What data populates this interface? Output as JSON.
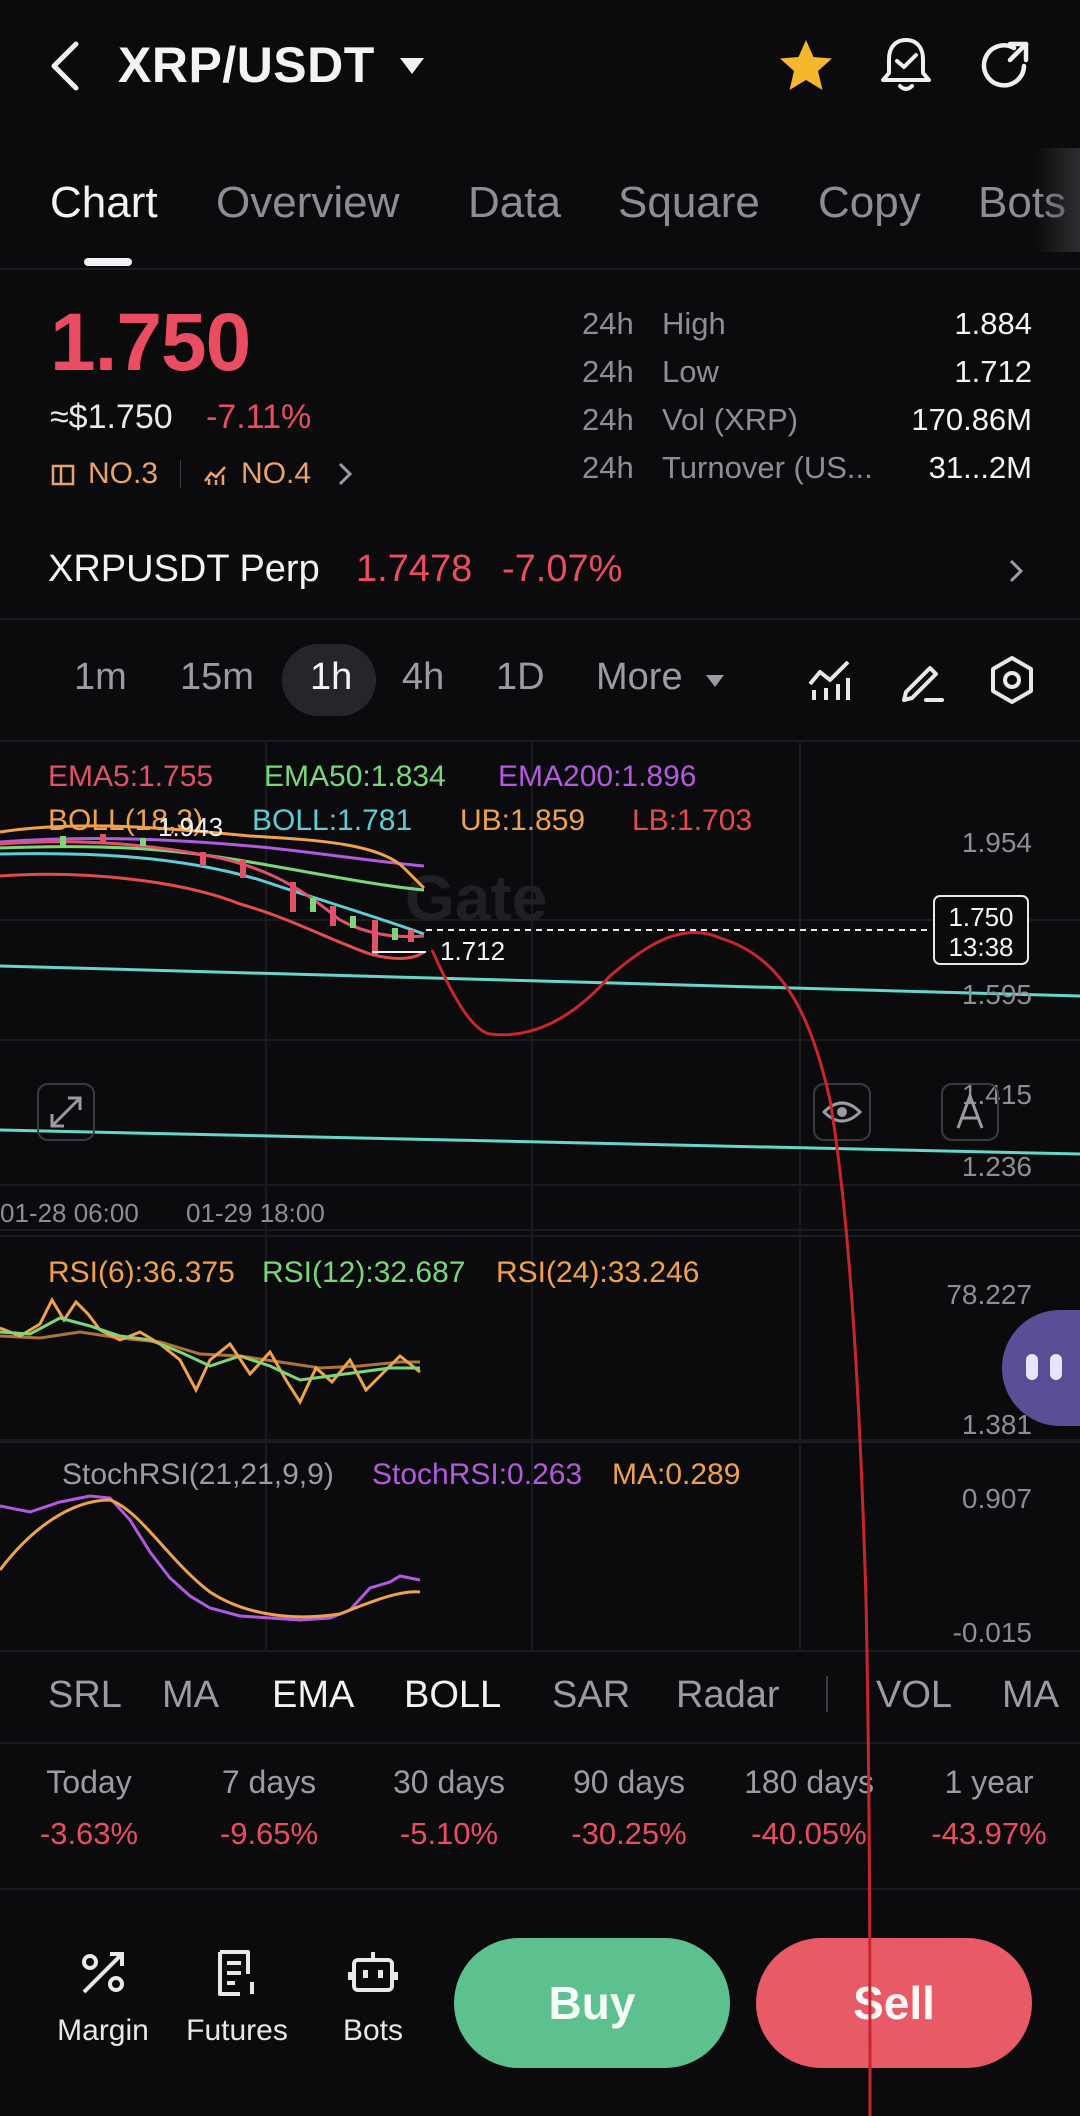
{
  "header": {
    "pair": "XRP/USDT",
    "icons": [
      "back-icon",
      "caret-down-icon",
      "star-icon",
      "bell-check-icon",
      "share-icon"
    ],
    "star_color": "#f5b72b"
  },
  "tabs": [
    {
      "label": "Chart",
      "active": true
    },
    {
      "label": "Overview"
    },
    {
      "label": "Data"
    },
    {
      "label": "Square"
    },
    {
      "label": "Copy"
    },
    {
      "label": "Bots"
    }
  ],
  "price": {
    "last": "1.750",
    "usd": "≈$1.750",
    "change": "-7.11%",
    "rank1": "NO.3",
    "rank2": "NO.4"
  },
  "stats": [
    {
      "period": "24h",
      "label": "High",
      "value": "1.884"
    },
    {
      "period": "24h",
      "label": "Low",
      "value": "1.712"
    },
    {
      "period": "24h",
      "label": "Vol (XRP)",
      "value": "170.86M"
    },
    {
      "period": "24h",
      "label": "Turnover (US...",
      "value": "31...2M"
    }
  ],
  "perp": {
    "name": "XRPUSDT Perp",
    "price": "1.7478",
    "change": "-7.07%"
  },
  "intervals": [
    "1m",
    "15m",
    "1h",
    "4h",
    "1D",
    "More"
  ],
  "selected_interval": "1h",
  "chart": {
    "ema": {
      "ema5": "EMA5:1.755",
      "ema50": "EMA50:1.834",
      "ema200": "EMA200:1.896"
    },
    "boll": {
      "name": "BOLL(18,3)",
      "mid": "BOLL:1.781",
      "ub": "UB:1.859",
      "lb": "LB:1.703"
    },
    "y_axis": [
      "1.954",
      "1.595",
      "1.415",
      "1.236"
    ],
    "x_axis": [
      "01-28 06:00",
      "01-29 18:00"
    ],
    "high_mark": "1.943",
    "low_mark": "1.712",
    "current_price": "1.750",
    "countdown": "13:38",
    "watermark": "Gate",
    "colors": {
      "ema5": "#e0526a",
      "ema50": "#7bd67a",
      "ema200": "#b15ae0",
      "boll": "#f0a24a",
      "boll_mid": "#5fcdd4",
      "lb": "#e24c4c",
      "trend": "#66d6c8",
      "overlay": "#c8262d"
    }
  },
  "rsi": {
    "rsi6": "RSI(6):36.375",
    "rsi12": "RSI(12):32.687",
    "rsi24": "RSI(24):33.246",
    "y_axis": [
      "78.227",
      "1.381"
    ]
  },
  "stoch": {
    "name": "StochRSI(21,21,9,9)",
    "value": "StochRSI:0.263",
    "ma": "MA:0.289",
    "y_axis": [
      "0.907",
      "-0.015"
    ]
  },
  "indicators": [
    {
      "label": "SRL"
    },
    {
      "label": "MA"
    },
    {
      "label": "EMA",
      "active": true
    },
    {
      "label": "BOLL",
      "active": true
    },
    {
      "label": "SAR"
    },
    {
      "label": "Radar"
    },
    {
      "label": "VOL"
    },
    {
      "label": "MA"
    }
  ],
  "performance": [
    {
      "label": "Today",
      "value": "-3.63%"
    },
    {
      "label": "7 days",
      "value": "-9.65%"
    },
    {
      "label": "30 days",
      "value": "-5.10%"
    },
    {
      "label": "90 days",
      "value": "-30.25%"
    },
    {
      "label": "180 days",
      "value": "-40.05%"
    },
    {
      "label": "1 year",
      "value": "-43.97%"
    }
  ],
  "bottom_nav": [
    {
      "label": "Margin"
    },
    {
      "label": "Futures"
    },
    {
      "label": "Bots"
    }
  ],
  "actions": {
    "buy": "Buy",
    "sell": "Sell"
  }
}
